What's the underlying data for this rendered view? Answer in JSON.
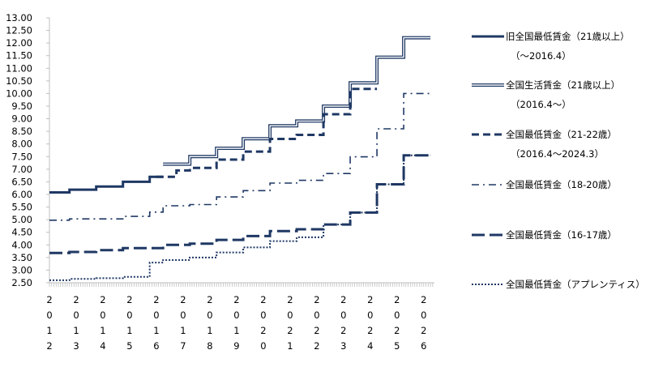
{
  "chart_data": {
    "type": "line",
    "title": "",
    "xlabel": "",
    "ylabel": "",
    "ylim": [
      2.5,
      13.0
    ],
    "yticks": [
      "2.50",
      "3.00",
      "3.50",
      "4.00",
      "4.50",
      "5.00",
      "5.50",
      "6.00",
      "6.50",
      "7.00",
      "7.50",
      "8.00",
      "8.50",
      "9.00",
      "9.50",
      "10.00",
      "10.50",
      "11.00",
      "11.50",
      "12.00",
      "12.50",
      "13.00"
    ],
    "x_tick_labels": [
      [
        "2",
        "0",
        "1",
        "2"
      ],
      [
        "2",
        "0",
        "1",
        "3"
      ],
      [
        "2",
        "0",
        "1",
        "4"
      ],
      [
        "2",
        "0",
        "1",
        "5"
      ],
      [
        "2",
        "0",
        "1",
        "6"
      ],
      [
        "2",
        "0",
        "1",
        "7"
      ],
      [
        "2",
        "0",
        "1",
        "8"
      ],
      [
        "2",
        "0",
        "1",
        "9"
      ],
      [
        "2",
        "0",
        "2",
        "0"
      ],
      [
        "2",
        "0",
        "2",
        "1"
      ],
      [
        "2",
        "0",
        "2",
        "2"
      ],
      [
        "2",
        "0",
        "2",
        "3"
      ],
      [
        "2",
        "0",
        "2",
        "4"
      ],
      [
        "2",
        "0",
        "2",
        "5"
      ],
      [
        "2",
        "0",
        "2",
        "6"
      ]
    ],
    "x_units": "year",
    "legend_position": "right",
    "series": [
      {
        "name": "旧全国最低賃金（21歳以上）（～2016.4）",
        "name_lines": [
          "旧全国最低賃金（21歳以上）",
          "（～2016.4）"
        ],
        "style": "solid-thick",
        "points": [
          [
            2012.0,
            6.08
          ],
          [
            2012.75,
            6.08
          ],
          [
            2012.75,
            6.19
          ],
          [
            2013.75,
            6.19
          ],
          [
            2013.75,
            6.31
          ],
          [
            2014.75,
            6.31
          ],
          [
            2014.75,
            6.5
          ],
          [
            2015.75,
            6.5
          ],
          [
            2015.75,
            6.7
          ],
          [
            2016.25,
            6.7
          ]
        ]
      },
      {
        "name": "全国生活賃金（21歳以上）（2016.4～）",
        "name_lines": [
          "全国生活賃金（21歳以上）",
          "（2016.4～）"
        ],
        "style": "double",
        "points": [
          [
            2016.25,
            7.2
          ],
          [
            2017.25,
            7.2
          ],
          [
            2017.25,
            7.5
          ],
          [
            2018.25,
            7.5
          ],
          [
            2018.25,
            7.83
          ],
          [
            2019.25,
            7.83
          ],
          [
            2019.25,
            8.21
          ],
          [
            2020.25,
            8.21
          ],
          [
            2020.25,
            8.72
          ],
          [
            2021.25,
            8.72
          ],
          [
            2021.25,
            8.91
          ],
          [
            2022.25,
            8.91
          ],
          [
            2022.25,
            9.5
          ],
          [
            2023.25,
            9.5
          ],
          [
            2023.25,
            10.42
          ],
          [
            2024.25,
            10.42
          ],
          [
            2024.25,
            11.44
          ],
          [
            2025.25,
            11.44
          ],
          [
            2025.25,
            12.21
          ],
          [
            2026.25,
            12.21
          ]
        ]
      },
      {
        "name": "全国最低賃金（21-22歳）（2016.4～2024.3）",
        "name_lines": [
          "全国最低賃金（21-22歳）",
          "（2016.4～2024.3）"
        ],
        "style": "dashed",
        "points": [
          [
            2016.0,
            6.7
          ],
          [
            2016.75,
            6.7
          ],
          [
            2016.75,
            6.95
          ],
          [
            2017.25,
            6.95
          ],
          [
            2017.25,
            7.05
          ],
          [
            2018.25,
            7.05
          ],
          [
            2018.25,
            7.38
          ],
          [
            2019.25,
            7.38
          ],
          [
            2019.25,
            7.7
          ],
          [
            2020.25,
            7.7
          ],
          [
            2020.25,
            8.2
          ],
          [
            2021.25,
            8.2
          ],
          [
            2021.25,
            8.36
          ],
          [
            2022.25,
            8.36
          ],
          [
            2022.25,
            9.18
          ],
          [
            2023.25,
            9.18
          ],
          [
            2023.25,
            10.18
          ],
          [
            2024.25,
            10.18
          ]
        ]
      },
      {
        "name": "全国最低賃金（18-20歳）",
        "name_lines": [
          "全国最低賃金（18-20歳）"
        ],
        "style": "dashdot",
        "points": [
          [
            2012.0,
            4.98
          ],
          [
            2012.75,
            4.98
          ],
          [
            2012.75,
            5.03
          ],
          [
            2014.75,
            5.03
          ],
          [
            2014.75,
            5.13
          ],
          [
            2015.75,
            5.13
          ],
          [
            2015.75,
            5.3
          ],
          [
            2016.25,
            5.3
          ],
          [
            2016.25,
            5.55
          ],
          [
            2017.25,
            5.55
          ],
          [
            2017.25,
            5.6
          ],
          [
            2018.25,
            5.6
          ],
          [
            2018.25,
            5.9
          ],
          [
            2019.25,
            5.9
          ],
          [
            2019.25,
            6.15
          ],
          [
            2020.25,
            6.15
          ],
          [
            2020.25,
            6.45
          ],
          [
            2021.25,
            6.45
          ],
          [
            2021.25,
            6.56
          ],
          [
            2022.25,
            6.56
          ],
          [
            2022.25,
            6.83
          ],
          [
            2023.25,
            6.83
          ],
          [
            2023.25,
            7.49
          ],
          [
            2024.25,
            7.49
          ],
          [
            2024.25,
            8.6
          ],
          [
            2025.25,
            8.6
          ],
          [
            2025.25,
            10.0
          ],
          [
            2026.25,
            10.0
          ]
        ]
      },
      {
        "name": "全国最低賃金（16-17歳）",
        "name_lines": [
          "全国最低賃金（16-17歳）"
        ],
        "style": "longdash",
        "points": [
          [
            2012.0,
            3.68
          ],
          [
            2012.75,
            3.68
          ],
          [
            2012.75,
            3.72
          ],
          [
            2013.75,
            3.72
          ],
          [
            2013.75,
            3.79
          ],
          [
            2014.75,
            3.79
          ],
          [
            2014.75,
            3.87
          ],
          [
            2016.25,
            3.87
          ],
          [
            2016.25,
            4.0
          ],
          [
            2017.25,
            4.0
          ],
          [
            2017.25,
            4.05
          ],
          [
            2018.25,
            4.05
          ],
          [
            2018.25,
            4.2
          ],
          [
            2019.25,
            4.2
          ],
          [
            2019.25,
            4.35
          ],
          [
            2020.25,
            4.35
          ],
          [
            2020.25,
            4.55
          ],
          [
            2021.25,
            4.55
          ],
          [
            2021.25,
            4.62
          ],
          [
            2022.25,
            4.62
          ],
          [
            2022.25,
            4.81
          ],
          [
            2023.25,
            4.81
          ],
          [
            2023.25,
            5.28
          ],
          [
            2024.25,
            5.28
          ],
          [
            2024.25,
            6.4
          ],
          [
            2025.25,
            6.4
          ],
          [
            2025.25,
            7.55
          ],
          [
            2026.25,
            7.55
          ]
        ]
      },
      {
        "name": "全国最低賃金（アプレンティス）",
        "name_lines": [
          "全国最低賃金（アプレンティス）"
        ],
        "style": "dotted",
        "points": [
          [
            2012.0,
            2.6
          ],
          [
            2012.75,
            2.6
          ],
          [
            2012.75,
            2.65
          ],
          [
            2013.75,
            2.65
          ],
          [
            2013.75,
            2.68
          ],
          [
            2014.75,
            2.68
          ],
          [
            2014.75,
            2.73
          ],
          [
            2015.75,
            2.73
          ],
          [
            2015.75,
            3.3
          ],
          [
            2016.25,
            3.3
          ],
          [
            2016.25,
            3.4
          ],
          [
            2017.25,
            3.4
          ],
          [
            2017.25,
            3.5
          ],
          [
            2018.25,
            3.5
          ],
          [
            2018.25,
            3.7
          ],
          [
            2019.25,
            3.7
          ],
          [
            2019.25,
            3.9
          ],
          [
            2020.25,
            3.9
          ],
          [
            2020.25,
            4.15
          ],
          [
            2021.25,
            4.15
          ],
          [
            2021.25,
            4.3
          ],
          [
            2022.25,
            4.3
          ],
          [
            2022.25,
            4.81
          ],
          [
            2023.25,
            4.81
          ],
          [
            2023.25,
            5.28
          ],
          [
            2024.25,
            5.28
          ],
          [
            2024.25,
            6.4
          ],
          [
            2025.25,
            6.4
          ],
          [
            2025.25,
            7.55
          ],
          [
            2026.25,
            7.55
          ]
        ]
      }
    ],
    "colors": {
      "series": "#1F3864",
      "axis": "#bfbfbf",
      "text": "#000000"
    },
    "grid": false
  }
}
